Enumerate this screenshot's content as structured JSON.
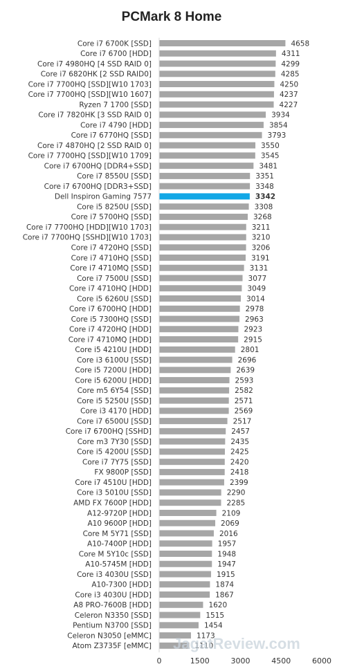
{
  "chart_data": {
    "type": "bar",
    "orientation": "horizontal",
    "title": "PCMark 8 Home",
    "categories": [
      "Core i7 6700K [SSD]",
      "Core i7 6700 [HDD]",
      "Core i7 4980HQ [4 SSD RAID 0]",
      "Core i7 6820HK [2 SSD RAID0]",
      "Core i7 7700HQ [SSD][W10 1703]",
      "Core i7 7700HQ [SSD][W10 1607]",
      "Ryzen 7 1700 [SSD]",
      "Core i7 7820HK [3 SSD RAID 0]",
      "Core i7 4790 [HDD]",
      "Core i7 6770HQ [SSD]",
      "Core i7 4870HQ [2 SSD RAID 0]",
      "Core i7 7700HQ [SSD][W10 1709]",
      "Core i7 6700HQ [DDR4+SSD]",
      "Core i7 8550U [SSD]",
      "Core i7 6700HQ [DDR3+SSD]",
      "Dell Inspiron Gaming 7577",
      "Core i5 8250U [SSD]",
      "Core i7 5700HQ [SSD]",
      "Core i7 7700HQ [HDD][W10 1703]",
      "Core i7 7700HQ [SSHD][W10 1703]",
      "Core i7 4720HQ [SSD]",
      "Core i7 4710HQ [SSD]",
      "Core i7 4710MQ [SSD]",
      "Core i7 7500U [SSD]",
      "Core i7 4710HQ [HDD]",
      "Core i5 6260U [SSD]",
      "Core i7 6700HQ [HDD]",
      "Core i5 7300HQ [SSD]",
      "Core i7 4720HQ [HDD]",
      "Core i7 4710MQ [HDD]",
      "Core i5 4210U [HDD]",
      "Core i3 6100U [SSD]",
      "Core i5 7200U [HDD]",
      "Core i5 6200U [HDD]",
      "Core m5 6Y54 [SSD]",
      "Core i5 5250U [SSD]",
      "Core i3 4170 [HDD]",
      "Core i7 6500U [SSD]",
      "Core i7 6700HQ [SSHD]",
      "Core m3 7Y30 [SSD]",
      "Core i5 4200U [SSD]",
      "Core i7 7Y75 [SSD]",
      "FX 9800P [SSD]",
      "Core i7 4510U [HDD]",
      "Core i3 5010U [SSD]",
      "AMD FX 7600P [HDD]",
      "A12-9720P [HDD]",
      "A10 9600P [HDD]",
      "Core M 5Y71 [SSD]",
      "A10-7400P [HDD]",
      "Core M 5Y10c [SSD]",
      "A10-5745M [HDD]",
      "Core i3 4030U [SSD]",
      "A10-7300 [HDD]",
      "Core i3 4030U [HDD]",
      "A8 PRO-7600B [HDD]",
      "Celeron N3350 [SSD]",
      "Pentium N3700 [SSD]",
      "Celeron N3050 [eMMC]",
      "Atom Z3735F [eMMC]"
    ],
    "values": [
      4658,
      4311,
      4299,
      4285,
      4250,
      4237,
      4227,
      3934,
      3854,
      3793,
      3550,
      3545,
      3481,
      3351,
      3348,
      3342,
      3308,
      3268,
      3211,
      3210,
      3206,
      3191,
      3131,
      3077,
      3049,
      3014,
      2978,
      2963,
      2923,
      2915,
      2801,
      2696,
      2639,
      2593,
      2582,
      2571,
      2569,
      2517,
      2457,
      2435,
      2425,
      2420,
      2418,
      2399,
      2290,
      2285,
      2109,
      2069,
      2016,
      1957,
      1948,
      1947,
      1915,
      1874,
      1867,
      1620,
      1515,
      1454,
      1173,
      1110
    ],
    "highlight_index": 15,
    "xlim": [
      0,
      6000
    ],
    "xticks": [
      "0",
      "1500",
      "3000",
      "4500",
      "6000"
    ],
    "xlabel": "",
    "ylabel": "",
    "grid": false,
    "legend": "none",
    "colors": {
      "bar": "#a6a6a6",
      "highlight_bar": "#12a7e6",
      "highlight_text": "#e0191f",
      "text": "#333333"
    }
  },
  "watermark": "JagatReview.com"
}
